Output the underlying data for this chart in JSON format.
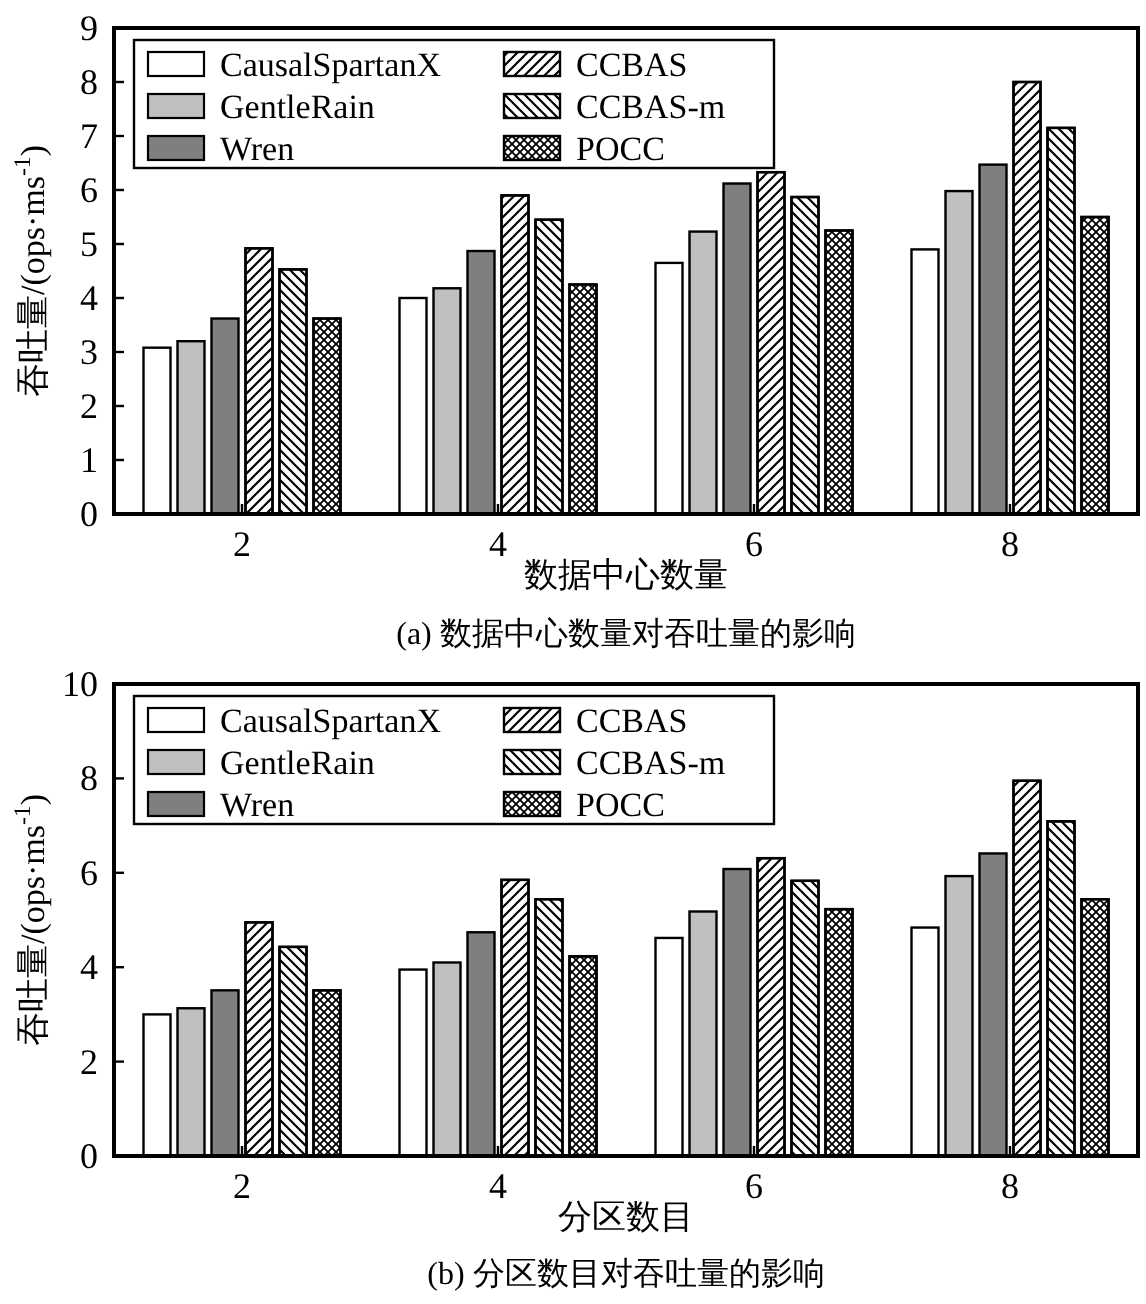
{
  "chart_data": [
    {
      "type": "bar",
      "title": "(a) 数据中心数量对吞吐量的影响",
      "xlabel": "数据中心数量",
      "ylabel": "吞吐量/(ops·ms$^{-1}$)",
      "categories": [
        "2",
        "4",
        "6",
        "8"
      ],
      "ylim": [
        0,
        9
      ],
      "yticks": [
        0,
        1,
        2,
        3,
        4,
        5,
        6,
        7,
        8,
        9
      ],
      "legend": "top left",
      "grid": false,
      "series": [
        {
          "name": "CausalSpartanX",
          "color": "#ffffff",
          "values": [
            3.08,
            4.0,
            4.65,
            4.9
          ]
        },
        {
          "name": "GentleRain",
          "color": "#c0c0c0",
          "values": [
            3.2,
            4.18,
            5.23,
            5.98
          ]
        },
        {
          "name": "Wren",
          "color": "#7f7f7f",
          "values": [
            3.62,
            4.87,
            6.12,
            6.47
          ]
        },
        {
          "name": "CCBAS",
          "color": "#ffffff",
          "values": [
            4.92,
            5.9,
            6.33,
            8.0
          ]
        },
        {
          "name": "CCBAS-m",
          "color": "#ffffff",
          "values": [
            4.53,
            5.45,
            5.87,
            7.15
          ]
        },
        {
          "name": "POCC",
          "color": "#ffffff",
          "values": [
            3.62,
            4.25,
            5.25,
            5.5
          ]
        }
      ]
    },
    {
      "type": "bar",
      "title": "(b) 分区数目对吞吐量的影响",
      "xlabel": "分区数目",
      "ylabel": "吞吐量/(ops·ms$^{-1}$)",
      "categories": [
        "2",
        "4",
        "6",
        "8"
      ],
      "ylim": [
        0,
        10
      ],
      "yticks": [
        0,
        2,
        4,
        6,
        8,
        10
      ],
      "legend": "top left",
      "grid": false,
      "series": [
        {
          "name": "CausalSpartanX",
          "color": "#ffffff",
          "values": [
            3.0,
            3.95,
            4.62,
            4.84
          ]
        },
        {
          "name": "GentleRain",
          "color": "#c0c0c0",
          "values": [
            3.13,
            4.1,
            5.18,
            5.93
          ]
        },
        {
          "name": "Wren",
          "color": "#7f7f7f",
          "values": [
            3.51,
            4.74,
            6.08,
            6.41
          ]
        },
        {
          "name": "CCBAS",
          "color": "#ffffff",
          "values": [
            4.95,
            5.85,
            6.31,
            7.95
          ]
        },
        {
          "name": "CCBAS-m",
          "color": "#ffffff",
          "values": [
            4.43,
            5.44,
            5.83,
            7.09
          ]
        },
        {
          "name": "POCC",
          "color": "#ffffff",
          "values": [
            3.51,
            4.23,
            5.23,
            5.44
          ]
        }
      ]
    }
  ]
}
